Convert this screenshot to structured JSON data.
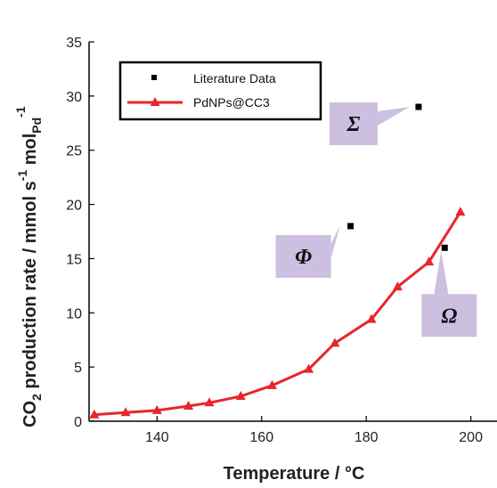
{
  "chart_data": {
    "type": "line",
    "xlabel": "Temperature / °C",
    "ylabel_parts": [
      "CO",
      "2",
      " production rate / mmol s",
      "-1",
      " mol",
      "Pd",
      "-1"
    ],
    "xlim": [
      127,
      205
    ],
    "ylim": [
      0,
      35
    ],
    "x_ticks": [
      "140",
      "160",
      "180",
      "200"
    ],
    "y_ticks": [
      "0",
      "5",
      "10",
      "15",
      "20",
      "25",
      "30",
      "35"
    ],
    "legend_position": "top-left",
    "grid": false,
    "series": [
      {
        "name": "Literature Data",
        "kind": "scatter",
        "marker": "square",
        "color": "#000000",
        "points": [
          {
            "x": 177,
            "y": 18,
            "label": "Φ"
          },
          {
            "x": 190,
            "y": 29,
            "label": "Σ"
          },
          {
            "x": 195,
            "y": 16,
            "label": "Ω"
          }
        ]
      },
      {
        "name": "PdNPs@CC3",
        "kind": "line",
        "marker": "triangle",
        "color": "#e8262b",
        "x": [
          128,
          134,
          140,
          146,
          150,
          156,
          162,
          169,
          174,
          181,
          186,
          192,
          198
        ],
        "y": [
          0.6,
          0.8,
          1.0,
          1.4,
          1.7,
          2.3,
          3.3,
          4.8,
          7.2,
          9.4,
          12.4,
          14.7,
          19.3
        ]
      }
    ]
  }
}
